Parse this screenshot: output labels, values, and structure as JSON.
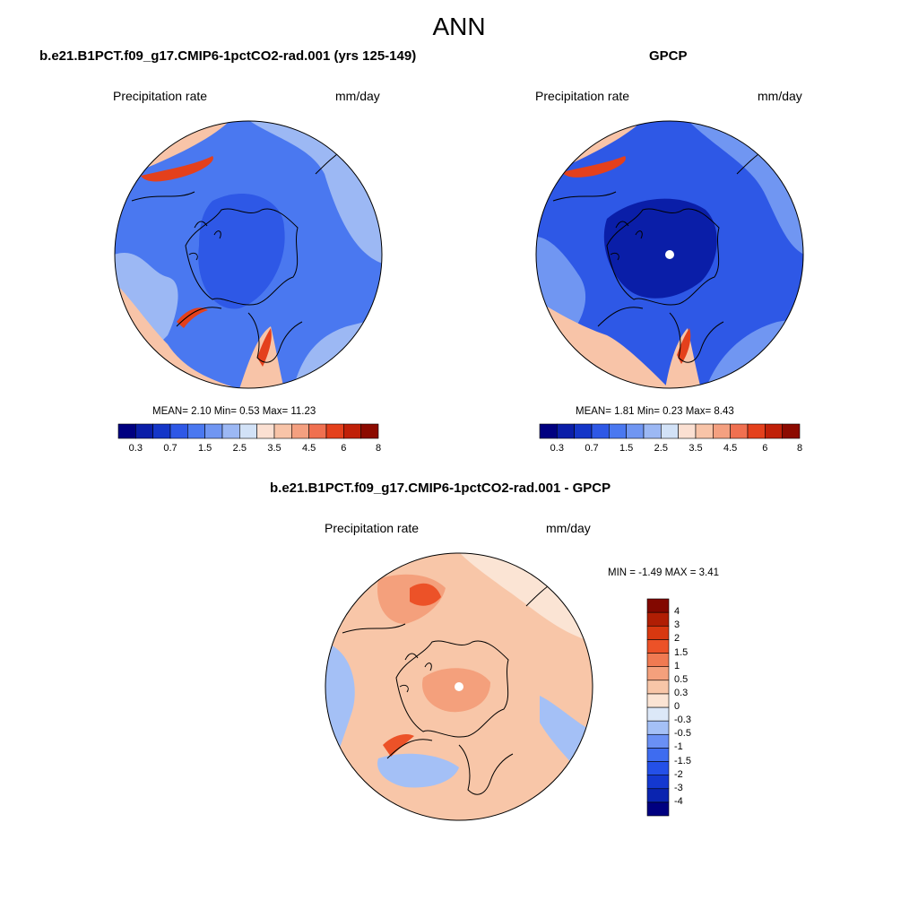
{
  "figure": {
    "title": "ANN"
  },
  "panels": [
    {
      "id": "model",
      "title": "b.e21.B1PCT.f09_g17.CMIP6-1pctCO2-rad.001 (yrs 125-149)",
      "left_label": "Precipitation rate",
      "right_label": "mm/day",
      "stats": "MEAN=   2.10  Min=    0.53  Max=  11.23"
    },
    {
      "id": "obs",
      "title": "GPCP",
      "left_label": "Precipitation rate",
      "right_label": "mm/day",
      "stats": "MEAN=   1.81  Min=    0.23  Max=   8.43"
    },
    {
      "id": "diff",
      "title": "b.e21.B1PCT.f09_g17.CMIP6-1pctCO2-rad.001 - GPCP",
      "left_label": "Precipitation rate",
      "right_label": "mm/day",
      "stats": "MIN =  -1.49 MAX =   3.41"
    }
  ],
  "colorbars": {
    "abs": {
      "colors": [
        "#000080",
        "#0a1ea8",
        "#1436c8",
        "#2e58e6",
        "#4a78f0",
        "#7096f2",
        "#9cb8f4",
        "#d2e2f7",
        "#fbe0d2",
        "#f8c4a8",
        "#f4a080",
        "#f07050",
        "#e4401c",
        "#c02008",
        "#8c0a00"
      ],
      "ticks": [
        "0.3",
        "0.7",
        "1.5",
        "2.5",
        "3.5",
        "4.5",
        "6",
        "8"
      ]
    },
    "diff": {
      "colors": [
        "#000080",
        "#0a24b0",
        "#1438d0",
        "#2450e8",
        "#3e6cf0",
        "#6a90f4",
        "#a4c0f6",
        "#dce8f8",
        "#fbe4d4",
        "#f8c6a8",
        "#f4a07c",
        "#f07a52",
        "#ec5228",
        "#d83810",
        "#b01e04",
        "#820800"
      ],
      "ticks": [
        "-4",
        "-3",
        "-2",
        "-1.5",
        "-1",
        "-0.5",
        "-0.3",
        "0",
        "0.3",
        "0.5",
        "1",
        "1.5",
        "2",
        "3",
        "4"
      ]
    }
  },
  "map_colors": {
    "model": {
      "base": "#4a78f0",
      "light": "#9cb8f4",
      "dark": "#2e58e6",
      "warm": "#f8c4a8",
      "hot": "#e4401c"
    },
    "obs": {
      "base": "#2e58e6",
      "light": "#7096f2",
      "dark": "#0a1ea8",
      "warm": "#f8c4a8",
      "hot": "#e4401c"
    },
    "diff": {
      "base": "#f8c6a8",
      "light": "#fbe4d4",
      "dark": "#f4a07c",
      "cool": "#a4c0f6",
      "hot": "#ec5228"
    }
  }
}
